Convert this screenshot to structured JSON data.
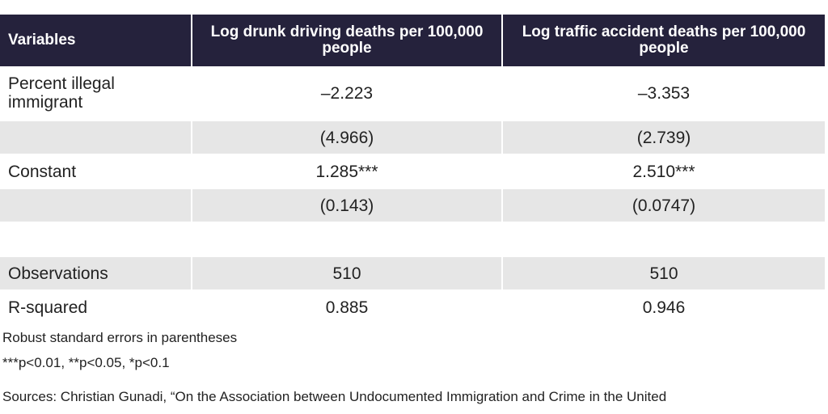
{
  "table": {
    "header": [
      "Variables",
      "Log drunk driving deaths per 100,000 people",
      "Log traffic accident deaths per 100,000 people"
    ],
    "rows": [
      [
        "Percent illegal immigrant",
        "–2.223",
        "–3.353"
      ],
      [
        "",
        "(4.966)",
        "(2.739)"
      ],
      [
        "Constant",
        "1.285***",
        "2.510***"
      ],
      [
        "",
        "(0.143)",
        "(0.0747)"
      ],
      [
        "Observations",
        "510",
        "510"
      ],
      [
        "R-squared",
        "0.885",
        "0.946"
      ]
    ]
  },
  "notes": [
    "Robust standard errors in parentheses",
    "***p<0.01, **p<0.05, *p<0.1",
    "Sources: Christian Gunadi, “On the Association between Undocumented Immigration and Crime in the United"
  ]
}
